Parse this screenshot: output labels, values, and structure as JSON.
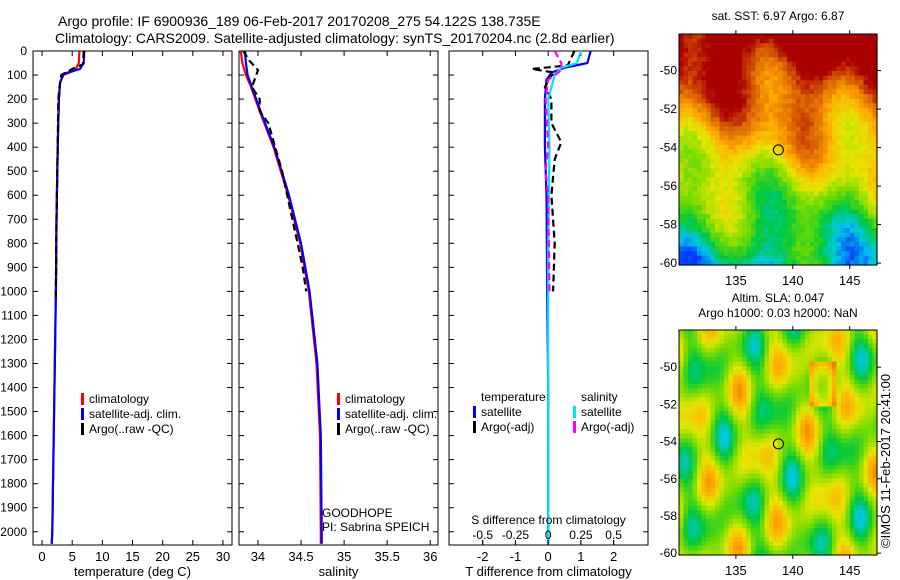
{
  "title_line1": "Argo profile: IF 6900936_189 06-Feb-2017 20170208_275 54.122S 138.735E",
  "title_line2": "Climatology: CARS2009. Satellite-adjusted climatology: synTS_20170204.nc (2.8d earlier)",
  "credit": "©IMOS 11-Feb-2017 20:41:00",
  "colors": {
    "climatology": "#ff0000",
    "satellite": "#0000ff",
    "argo": "#000000",
    "sal_satellite": "#00e5ee",
    "sal_argo": "#ff00ff"
  },
  "chart_data": [
    {
      "type": "line",
      "id": "temperature",
      "xlabel": "temperature (deg C)",
      "ylabel": "",
      "xlim": [
        -1.5,
        31.5
      ],
      "ylim": [
        2055,
        0
      ],
      "xticks": [
        "0",
        "5",
        "10",
        "15",
        "20",
        "25",
        "30"
      ],
      "xtick_values": [
        0,
        5,
        10,
        15,
        20,
        25,
        30
      ],
      "yticks": [
        "0",
        "100",
        "200",
        "300",
        "400",
        "500",
        "600",
        "700",
        "800",
        "900",
        "1000",
        "1100",
        "1200",
        "1300",
        "1400",
        "1500",
        "1600",
        "1700",
        "1800",
        "1900",
        "2000"
      ],
      "ytick_values": [
        0,
        100,
        200,
        300,
        400,
        500,
        600,
        700,
        800,
        900,
        1000,
        1100,
        1200,
        1300,
        1400,
        1500,
        1600,
        1700,
        1800,
        1900,
        2000
      ],
      "legend": [
        "climatology",
        "satellite-adj. clim.",
        "Argo(..raw -QC)"
      ],
      "series": [
        {
          "name": "climatology",
          "style": "solid",
          "color": "#ff0000",
          "depth": [
            0,
            50,
            80,
            100,
            130,
            200,
            400,
            700,
            1000,
            1500,
            2000,
            2050
          ],
          "values": [
            6.2,
            6.1,
            5.5,
            3.5,
            3.0,
            2.8,
            2.6,
            2.4,
            2.3,
            2.0,
            1.7,
            1.6
          ]
        },
        {
          "name": "satellite-adj. clim.",
          "style": "solid",
          "color": "#0000ff",
          "depth": [
            0,
            50,
            75,
            95,
            130,
            200,
            400,
            700,
            1000,
            1500,
            2000,
            2050
          ],
          "values": [
            7.0,
            6.9,
            6.3,
            3.6,
            3.0,
            2.8,
            2.6,
            2.4,
            2.3,
            2.0,
            1.7,
            1.6
          ]
        },
        {
          "name": "Argo(..raw -QC)",
          "style": "dash",
          "color": "#000000",
          "depth": [
            0,
            55,
            75,
            100,
            150,
            200,
            400,
            700,
            1000,
            1030
          ],
          "values": [
            6.9,
            6.8,
            5.0,
            3.2,
            2.9,
            2.7,
            2.6,
            2.4,
            2.3,
            2.3
          ]
        }
      ]
    },
    {
      "type": "line",
      "id": "salinity",
      "xlabel": "salinity",
      "xlim": [
        33.78,
        36.09
      ],
      "ylim": [
        2055,
        0
      ],
      "xticks": [
        "34",
        "34.5",
        "35",
        "35.5",
        "36"
      ],
      "xtick_values": [
        34,
        34.5,
        35,
        35.5,
        36
      ],
      "legend": [
        "climatology",
        "satellite-adj. clim.",
        "Argo(..raw -QC)"
      ],
      "annotation": [
        "GOODHOPE",
        "PI: Sabrina SPEICH"
      ],
      "series": [
        {
          "name": "climatology",
          "style": "solid",
          "color": "#ff0000",
          "depth": [
            0,
            50,
            100,
            150,
            250,
            400,
            600,
            800,
            1000,
            1300,
            1600,
            2000,
            2050
          ],
          "values": [
            33.8,
            33.82,
            33.86,
            33.92,
            34.02,
            34.18,
            34.35,
            34.49,
            34.59,
            34.68,
            34.72,
            34.73,
            34.73
          ]
        },
        {
          "name": "satellite-adj. clim.",
          "style": "solid",
          "color": "#0000ff",
          "depth": [
            0,
            50,
            100,
            150,
            250,
            400,
            600,
            800,
            1000,
            1300,
            1600,
            2000,
            2050
          ],
          "values": [
            33.85,
            33.86,
            33.88,
            33.93,
            34.03,
            34.19,
            34.36,
            34.5,
            34.6,
            34.69,
            34.73,
            34.74,
            34.74
          ]
        },
        {
          "name": "Argo(..raw -QC)",
          "style": "dash",
          "color": "#000000",
          "depth": [
            0,
            40,
            80,
            150,
            200,
            250,
            300,
            400,
            500,
            600,
            800,
            900,
            1000
          ],
          "values": [
            33.83,
            33.9,
            34.0,
            33.93,
            34.02,
            34.02,
            34.12,
            34.2,
            34.28,
            34.34,
            34.46,
            34.52,
            34.56
          ]
        }
      ]
    },
    {
      "type": "line",
      "id": "difference",
      "xlabel": "T difference from climatology",
      "xlabel2": "S difference from climatology",
      "xlim": [
        -3.03,
        3.05
      ],
      "ylim": [
        2055,
        0
      ],
      "xticks": [
        "-2",
        "-1",
        "0",
        "1",
        "2"
      ],
      "xtick_values": [
        -2,
        -1,
        0,
        1,
        2
      ],
      "xticks2": [
        "-0.5",
        "-0.25",
        "0",
        "0.25",
        "0.5"
      ],
      "xtick_values2": [
        -0.5,
        -0.25,
        0,
        0.25,
        0.5
      ],
      "legend_headers": [
        "temperature",
        "salinity"
      ],
      "legend": [
        "satellite",
        "Argo(-adj)",
        "satellite",
        "Argo(-adj)"
      ],
      "series": [
        {
          "name": "T satellite",
          "style": "solid",
          "color": "#0000ff",
          "depth": [
            0,
            50,
            70,
            90,
            120,
            200,
            400,
            600,
            1000,
            1400,
            2050
          ],
          "values": [
            1.3,
            1.2,
            0.5,
            0.1,
            -0.05,
            -0.1,
            -0.1,
            -0.05,
            -0.03,
            0,
            0
          ]
        },
        {
          "name": "T Argo(-adj)",
          "style": "dash",
          "color": "#000000",
          "depth": [
            0,
            60,
            75,
            90,
            110,
            150,
            200,
            300,
            380,
            450,
            600,
            800,
            1000
          ],
          "values": [
            0.8,
            0.6,
            -0.5,
            0.2,
            0.05,
            -0.1,
            0.1,
            0.1,
            0.4,
            0.2,
            0.1,
            0.2,
            0.15
          ]
        },
        {
          "name": "S satellite",
          "style": "solid",
          "color": "#00e5ee",
          "depth": [
            0,
            50,
            70,
            100,
            200,
            400,
            800,
            1200,
            1600,
            2050
          ],
          "values": [
            0.25,
            0.22,
            0.1,
            0.05,
            0.0,
            0.01,
            0.0,
            0.0,
            0.0,
            0.0
          ]
        },
        {
          "name": "S Argo(-adj)",
          "style": "dash",
          "color": "#ff00ff",
          "depth": [
            0,
            50,
            80,
            120,
            200,
            300,
            400,
            500,
            600,
            1000
          ],
          "values": [
            0.05,
            0.1,
            0.1,
            0.0,
            -0.02,
            -0.01,
            0.0,
            -0.02,
            0.0,
            0.01
          ]
        }
      ]
    },
    {
      "type": "heatmap",
      "id": "sst-map",
      "title": "sat. SST: 6.97 Argo: 6.87",
      "xlim": [
        130,
        147.4
      ],
      "ylim": [
        -60.1,
        -48.1
      ],
      "xticks": [
        "135",
        "140",
        "145"
      ],
      "xtick_values": [
        135,
        140,
        145
      ],
      "yticks": [
        "-50",
        "-52",
        "-54",
        "-56",
        "-58",
        "-60"
      ],
      "ytick_values": [
        -50,
        -52,
        -54,
        -56,
        -58,
        -60
      ],
      "marker": {
        "lon": 138.735,
        "lat": -54.122
      }
    },
    {
      "type": "heatmap",
      "id": "sla-map",
      "title": "Altim. SLA: 0.047",
      "subtitle": "Argo h1000: 0.03 h2000: NaN",
      "xlim": [
        130,
        147.4
      ],
      "ylim": [
        -60.1,
        -48
      ],
      "xticks": [
        "135",
        "140",
        "145"
      ],
      "xtick_values": [
        135,
        140,
        145
      ],
      "yticks": [
        "-50",
        "-52",
        "-54",
        "-56",
        "-58",
        "-60"
      ],
      "ytick_values": [
        -50,
        -52,
        -54,
        -56,
        -58,
        -60
      ],
      "marker": {
        "lon": 138.735,
        "lat": -54.122
      }
    }
  ]
}
